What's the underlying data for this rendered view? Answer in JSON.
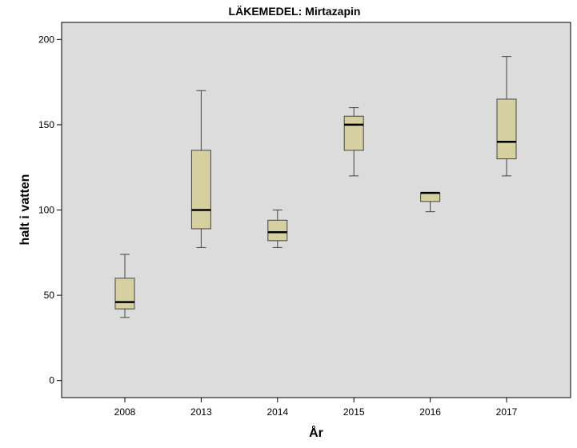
{
  "chart_data": {
    "type": "boxplot",
    "title": "LÄKEMEDEL: Mirtazapin",
    "xlabel": "År",
    "ylabel": "halt i vatten",
    "ylim": [
      -10,
      210
    ],
    "yticks": [
      0,
      50,
      100,
      150,
      200
    ],
    "categories": [
      "2008",
      "2013",
      "2014",
      "2015",
      "2016",
      "2017"
    ],
    "boxes": [
      {
        "category": "2008",
        "min": 37,
        "q1": 42,
        "median": 46,
        "q3": 60,
        "max": 74
      },
      {
        "category": "2013",
        "min": 78,
        "q1": 89,
        "median": 100,
        "q3": 135,
        "max": 170
      },
      {
        "category": "2014",
        "min": 78,
        "q1": 82,
        "median": 87,
        "q3": 94,
        "max": 100
      },
      {
        "category": "2015",
        "min": 120,
        "q1": 135,
        "median": 150,
        "q3": 155,
        "max": 160
      },
      {
        "category": "2016",
        "min": 99,
        "q1": 105,
        "median": 110,
        "q3": 110,
        "max": 110
      },
      {
        "category": "2017",
        "min": 120,
        "q1": 130,
        "median": 140,
        "q3": 165,
        "max": 190
      }
    ],
    "colors": {
      "plot_background": "#dcdcdc",
      "box_fill": "#d6cfa0",
      "box_stroke": "#444444",
      "median": "#000000"
    }
  }
}
